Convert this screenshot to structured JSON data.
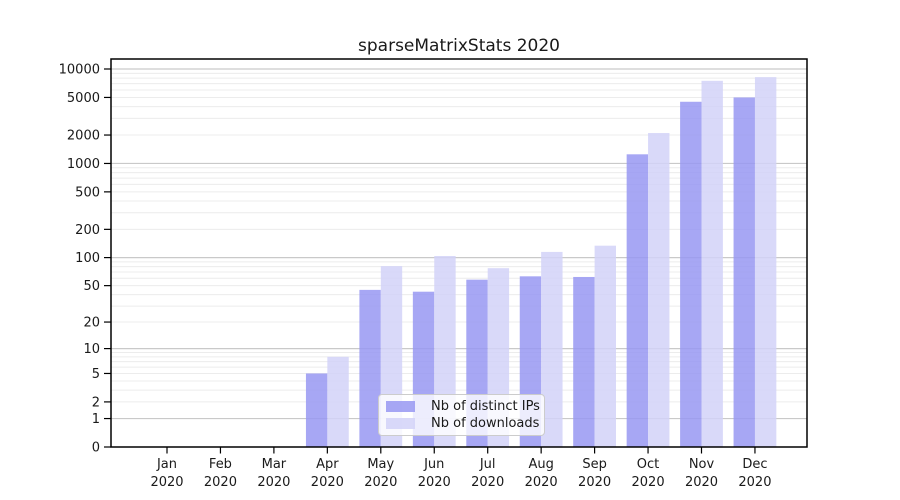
{
  "chart_data": {
    "type": "bar",
    "title": "sparseMatrixStats 2020",
    "x_categories_month": [
      "Jan",
      "Feb",
      "Mar",
      "Apr",
      "May",
      "Jun",
      "Jul",
      "Aug",
      "Sep",
      "Oct",
      "Nov",
      "Dec"
    ],
    "x_year": "2020",
    "series": [
      {
        "name": "Nb of distinct IPs",
        "color": "#9898f2",
        "opacity": 0.85,
        "values": [
          null,
          null,
          null,
          5,
          45,
          43,
          58,
          63,
          62,
          1250,
          4500,
          5000
        ]
      },
      {
        "name": "Nb of downloads",
        "color": "#d2d2f8",
        "opacity": 0.85,
        "values": [
          null,
          null,
          null,
          8,
          81,
          104,
          77,
          115,
          134,
          2100,
          7500,
          8200
        ]
      }
    ],
    "yscale": "log1p",
    "ylim": [
      0,
      12800
    ],
    "y_tick_values": [
      0,
      1,
      2,
      5,
      10,
      20,
      50,
      100,
      200,
      500,
      1000,
      2000,
      5000,
      10000
    ],
    "y_tick_labels": [
      "0",
      "1",
      "2",
      "5",
      "10",
      "20",
      "50",
      "100",
      "200",
      "500",
      "1000",
      "2000",
      "5000",
      "10000"
    ],
    "grid": {
      "orientation": "horizontal",
      "major_values": [
        1,
        10,
        100,
        1000,
        10000
      ],
      "minor_multiples_per_decade": [
        2,
        3,
        4,
        5,
        6,
        7,
        8,
        9
      ],
      "major_color": "#c9c9c9",
      "minor_color": "#ececec"
    },
    "legend_position": "lower center",
    "frame_color": "#000000",
    "text_color": "#1a1a1a"
  }
}
